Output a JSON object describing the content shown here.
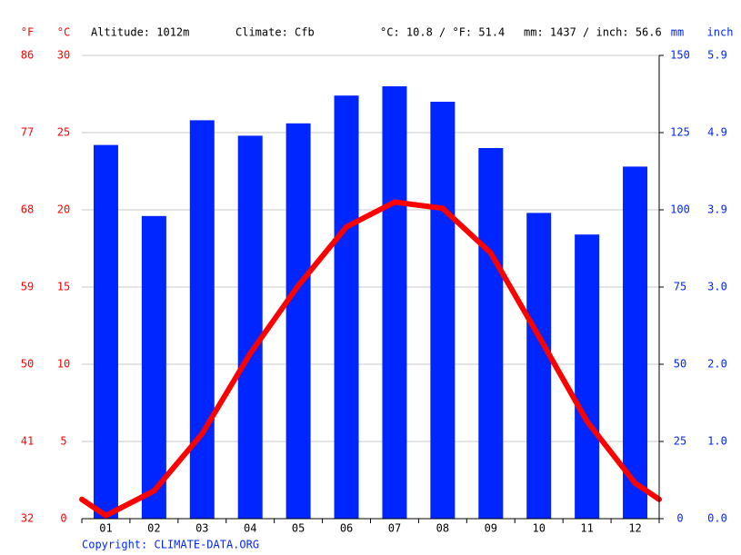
{
  "chart_data": {
    "type": "climate",
    "header": {
      "altitude": "Altitude: 1012m",
      "climate": "Climate: Cfb",
      "temperature": "°C: 10.8 / °F: 51.4",
      "precipitation": "mm: 1437 / inch: 56.6"
    },
    "copyright": "Copyright: CLIMATE-DATA.ORG",
    "categories": [
      "01",
      "02",
      "03",
      "04",
      "05",
      "06",
      "07",
      "08",
      "09",
      "10",
      "11",
      "12"
    ],
    "series": [
      {
        "type": "bar",
        "axis": "y2",
        "color": "#0026ff",
        "values": [
          121,
          98,
          129,
          124,
          128,
          137,
          140,
          135,
          120,
          99,
          92,
          114
        ]
      },
      {
        "type": "line",
        "axis": "y",
        "color": "#ff0000",
        "values": [
          0.2,
          1.8,
          5.5,
          10.7,
          15.1,
          18.9,
          20.5,
          20.1,
          17.2,
          11.8,
          6.3,
          2.3
        ]
      }
    ],
    "y_label": "°C",
    "ylim": [
      0,
      30
    ],
    "yticks": [
      0,
      5,
      10,
      15,
      20,
      25,
      30
    ],
    "yf_label": "°F",
    "yf_lim": [
      32,
      86
    ],
    "yf_ticks": [
      32,
      41,
      50,
      59,
      68,
      77,
      86
    ],
    "y2_label": "mm",
    "y2lim": [
      0,
      150
    ],
    "y2ticks": [
      0,
      25,
      50,
      75,
      100,
      125,
      150
    ],
    "y3_label": "inch",
    "y3lim": [
      0,
      5.9055
    ],
    "y3ticks": [
      {
        "value": 0,
        "label": "0.0"
      },
      {
        "value": 0.9843,
        "label": "1.0"
      },
      {
        "value": 1.9685,
        "label": "2.0"
      },
      {
        "value": 2.9528,
        "label": "3.0"
      },
      {
        "value": 3.937,
        "label": "3.9"
      },
      {
        "value": 4.9213,
        "label": "4.9"
      },
      {
        "value": 5.9055,
        "label": "5.9"
      }
    ],
    "grid": true
  }
}
